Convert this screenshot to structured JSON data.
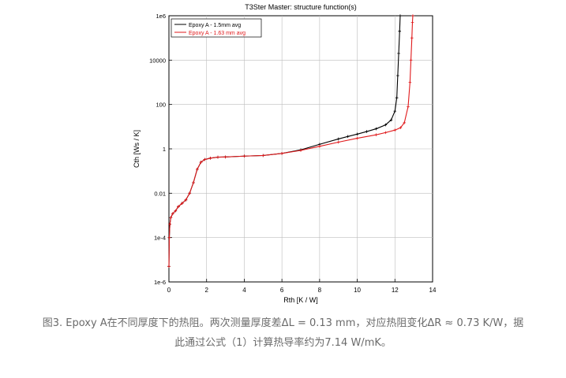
{
  "chart_data": {
    "type": "line",
    "title": "T3Ster Master: structure function(s)",
    "xlabel": "Rth  [K / W]",
    "ylabel": "Cth  [Ws / K]",
    "xlim": [
      0,
      14
    ],
    "ylim": [
      1e-06,
      1000000
    ],
    "yscale": "log",
    "grid": true,
    "legend_position": "top-left",
    "x_ticks": [
      0,
      2,
      4,
      6,
      8,
      10,
      12,
      14
    ],
    "x_tick_labels": [
      "0",
      "2",
      "4",
      "6",
      "8",
      "10",
      "12",
      "14"
    ],
    "y_ticks": [
      1e-06,
      0.0001,
      0.01,
      1,
      100,
      10000,
      1000000
    ],
    "y_tick_labels": [
      "1e-6",
      "1e-4",
      "0.01",
      "1",
      "100",
      "10000",
      "1e6"
    ],
    "series": [
      {
        "name": "Epoxy A - 1.5mm avg",
        "color": "#000000",
        "x": [
          0.0,
          0.02,
          0.05,
          0.1,
          0.2,
          0.35,
          0.5,
          0.7,
          0.9,
          1.1,
          1.3,
          1.5,
          1.7,
          1.9,
          2.2,
          2.6,
          3.0,
          4.0,
          5.0,
          6.0,
          7.0,
          8.0,
          9.0,
          9.5,
          10.0,
          10.5,
          11.0,
          11.5,
          11.8,
          12.0,
          12.1,
          12.15,
          12.2,
          12.25,
          12.28
        ],
        "y": [
          5e-06,
          0.0001,
          0.0004,
          0.0008,
          0.0012,
          0.0016,
          0.0025,
          0.0035,
          0.005,
          0.01,
          0.03,
          0.12,
          0.25,
          0.33,
          0.38,
          0.42,
          0.43,
          0.47,
          0.5,
          0.62,
          0.9,
          1.6,
          2.8,
          3.6,
          4.6,
          6.0,
          8.0,
          12.0,
          20.0,
          50.0,
          200.0,
          2000.0,
          20000.0,
          200000.0,
          1000000.0
        ]
      },
      {
        "name": "Epoxy A - 1.63 mm avg",
        "color": "#e0191b",
        "x": [
          0.0,
          0.02,
          0.05,
          0.1,
          0.2,
          0.35,
          0.5,
          0.7,
          0.9,
          1.1,
          1.3,
          1.5,
          1.7,
          1.9,
          2.2,
          2.6,
          3.0,
          4.0,
          5.0,
          6.0,
          7.0,
          8.0,
          9.0,
          10.0,
          11.0,
          11.5,
          12.0,
          12.3,
          12.5,
          12.7,
          12.8,
          12.85,
          12.9,
          12.93,
          12.95
        ],
        "y": [
          5e-06,
          0.0001,
          0.0004,
          0.0008,
          0.0012,
          0.0016,
          0.0025,
          0.0035,
          0.005,
          0.01,
          0.03,
          0.12,
          0.25,
          0.33,
          0.38,
          0.42,
          0.43,
          0.47,
          0.5,
          0.62,
          0.85,
          1.3,
          2.0,
          3.0,
          4.3,
          5.4,
          7.0,
          9.0,
          15.0,
          80.0,
          1000.0,
          10000.0,
          100000.0,
          500000.0,
          1000000.0
        ]
      }
    ]
  },
  "caption": {
    "line1": "图3. Epoxy A在不同厚度下的热阻。两次测量厚度差ΔL = 0.13 mm，对应热阻变化ΔR ≈ 0.73 K/W，据",
    "line2": "此通过公式（1）计算热导率约为7.14 W/mK。"
  }
}
